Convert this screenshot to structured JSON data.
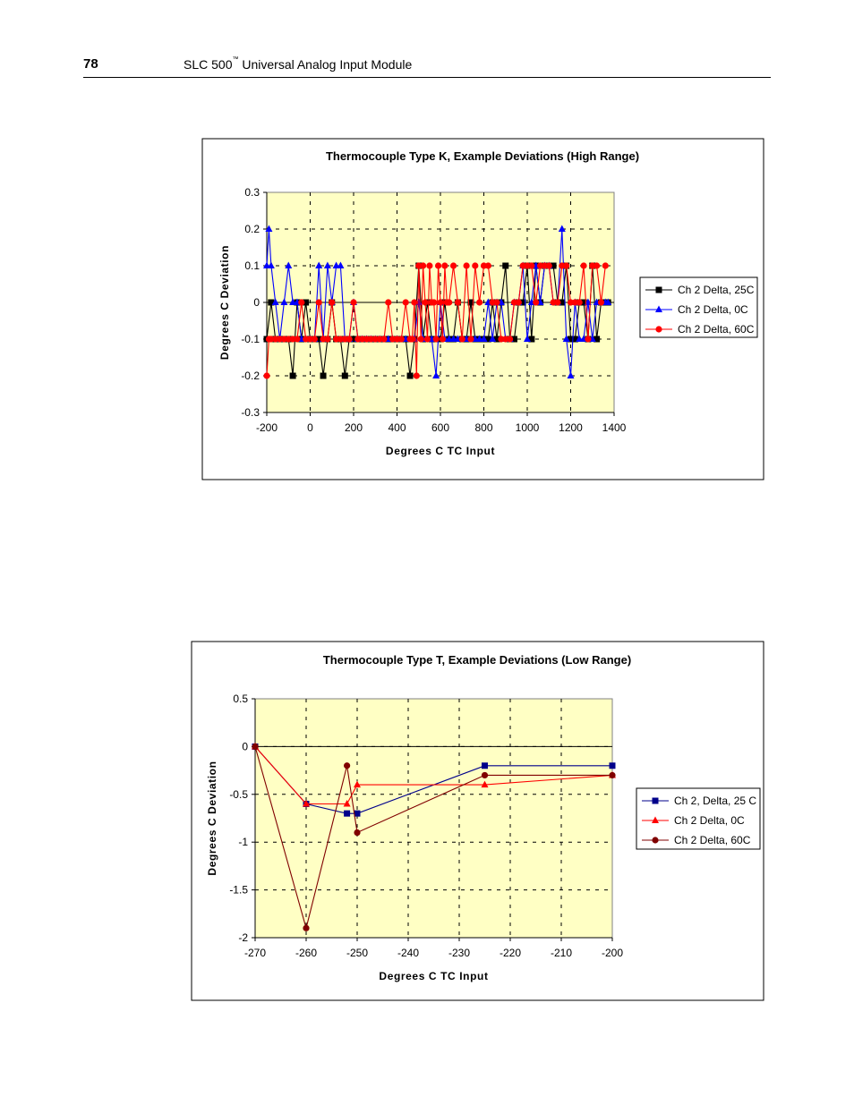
{
  "header": {
    "page_number": "78",
    "title_main": "SLC 500",
    "title_tm": "™",
    "title_rest": " Universal Analog Input Module"
  },
  "chart_data": [
    {
      "type": "line",
      "title": "Thermocouple Type K, Example Deviations (High Range)",
      "xlabel": "Degrees C TC Input",
      "ylabel": "Degrees C Deviation",
      "xlim": [
        -200,
        1400
      ],
      "ylim": [
        -0.3,
        0.3
      ],
      "xticks": [
        -200,
        0,
        200,
        400,
        600,
        800,
        1000,
        1200,
        1400
      ],
      "xtick_labels": [
        "-200",
        "0",
        "200",
        "400",
        "600",
        "800",
        "1000",
        "1200",
        "1400"
      ],
      "yticks": [
        -0.3,
        -0.2,
        -0.1,
        0,
        0.1,
        0.2,
        0.3
      ],
      "ytick_labels": [
        "-0.3",
        "-0.2",
        "-0.1",
        "0",
        "0.1",
        "0.2",
        "0.3"
      ],
      "grid": true,
      "legend_position": "right",
      "series": [
        {
          "name": "Ch 2 Delta, 25C",
          "color": "#000000",
          "marker": "square",
          "x": [
            -200,
            -180,
            -160,
            -140,
            -120,
            -100,
            -80,
            -60,
            -40,
            -20,
            0,
            20,
            40,
            60,
            80,
            100,
            120,
            140,
            160,
            180,
            200,
            220,
            240,
            260,
            280,
            300,
            320,
            340,
            360,
            380,
            400,
            420,
            440,
            460,
            480,
            500,
            520,
            540,
            560,
            580,
            600,
            620,
            640,
            660,
            680,
            700,
            720,
            740,
            760,
            780,
            800,
            820,
            840,
            860,
            880,
            900,
            920,
            940,
            960,
            980,
            1000,
            1020,
            1040,
            1060,
            1080,
            1100,
            1120,
            1140,
            1160,
            1180,
            1200,
            1220,
            1240,
            1260,
            1280,
            1300,
            1320,
            1340,
            1360,
            1372
          ],
          "y": [
            -0.1,
            0,
            -0.1,
            -0.1,
            -0.1,
            -0.1,
            -0.2,
            0,
            -0.1,
            0,
            -0.1,
            -0.1,
            -0.1,
            -0.2,
            -0.1,
            0,
            -0.1,
            -0.1,
            -0.2,
            -0.1,
            -0.1,
            -0.1,
            -0.1,
            -0.1,
            -0.1,
            -0.1,
            -0.1,
            -0.1,
            -0.1,
            -0.1,
            -0.1,
            -0.1,
            -0.1,
            -0.2,
            -0.1,
            0.1,
            -0.1,
            0,
            -0.1,
            -0.1,
            -0.1,
            0,
            -0.1,
            -0.1,
            0,
            -0.1,
            -0.1,
            0,
            -0.1,
            -0.1,
            -0.1,
            -0.1,
            0,
            -0.1,
            0,
            0.1,
            -0.1,
            -0.1,
            0,
            0,
            0.1,
            -0.1,
            0.1,
            0,
            0.1,
            0.1,
            0.1,
            0,
            0,
            0.1,
            -0.1,
            -0.1,
            0,
            0,
            -0.1,
            0.1,
            -0.1,
            0,
            0,
            0
          ]
        },
        {
          "name": "Ch 2 Delta, 0C",
          "color": "#0000ff",
          "marker": "triangle",
          "x": [
            -200,
            -190,
            -180,
            -160,
            -140,
            -120,
            -100,
            -80,
            -60,
            -40,
            -20,
            0,
            20,
            40,
            60,
            80,
            100,
            120,
            140,
            160,
            180,
            200,
            220,
            240,
            260,
            280,
            300,
            320,
            340,
            360,
            380,
            400,
            420,
            440,
            460,
            480,
            500,
            520,
            540,
            560,
            580,
            600,
            620,
            640,
            660,
            680,
            700,
            720,
            740,
            760,
            780,
            800,
            820,
            840,
            860,
            880,
            900,
            920,
            940,
            960,
            980,
            1000,
            1020,
            1040,
            1060,
            1080,
            1100,
            1120,
            1140,
            1160,
            1180,
            1200,
            1220,
            1240,
            1260,
            1280,
            1300,
            1320,
            1340,
            1360,
            1372
          ],
          "y": [
            0.1,
            0.2,
            0.1,
            0,
            -0.1,
            0,
            0.1,
            0,
            0,
            -0.1,
            -0.1,
            -0.1,
            -0.1,
            0.1,
            -0.1,
            0.1,
            0,
            0.1,
            0.1,
            -0.1,
            -0.1,
            0,
            -0.1,
            -0.1,
            -0.1,
            -0.1,
            -0.1,
            -0.1,
            -0.1,
            -0.1,
            -0.1,
            -0.1,
            -0.1,
            -0.1,
            -0.1,
            -0.1,
            0,
            -0.1,
            -0.1,
            -0.1,
            -0.2,
            0,
            -0.1,
            -0.1,
            -0.1,
            -0.1,
            -0.1,
            -0.1,
            -0.1,
            -0.1,
            -0.1,
            -0.1,
            0,
            -0.1,
            0,
            0,
            -0.1,
            -0.1,
            0,
            0,
            0.1,
            -0.1,
            0,
            0.1,
            0,
            0.1,
            0.1,
            0,
            0,
            0.2,
            -0.1,
            -0.2,
            0,
            -0.1,
            -0.1,
            0,
            -0.1,
            0,
            0,
            0,
            0
          ]
        },
        {
          "name": "Ch 2 Delta, 60C",
          "color": "#ff0000",
          "marker": "circle",
          "x": [
            -200,
            -190,
            -180,
            -160,
            -140,
            -120,
            -100,
            -80,
            -60,
            -40,
            -20,
            0,
            20,
            40,
            60,
            80,
            100,
            120,
            140,
            160,
            180,
            200,
            220,
            240,
            260,
            280,
            300,
            320,
            340,
            360,
            380,
            400,
            420,
            440,
            460,
            470,
            480,
            490,
            500,
            510,
            520,
            530,
            540,
            550,
            560,
            570,
            580,
            590,
            600,
            610,
            620,
            630,
            640,
            660,
            680,
            700,
            720,
            740,
            760,
            780,
            800,
            820,
            840,
            860,
            880,
            900,
            920,
            940,
            960,
            980,
            1000,
            1020,
            1040,
            1060,
            1080,
            1100,
            1120,
            1140,
            1160,
            1180,
            1200,
            1220,
            1240,
            1260,
            1280,
            1300,
            1320,
            1340,
            1360
          ],
          "y": [
            -0.2,
            -0.1,
            -0.1,
            -0.1,
            -0.1,
            -0.1,
            -0.1,
            -0.1,
            -0.1,
            0,
            -0.1,
            -0.1,
            -0.1,
            0,
            -0.1,
            -0.1,
            0,
            -0.1,
            -0.1,
            -0.1,
            -0.1,
            0,
            -0.1,
            -0.1,
            -0.1,
            -0.1,
            -0.1,
            -0.1,
            -0.1,
            0,
            -0.1,
            -0.1,
            -0.1,
            0,
            -0.1,
            -0.1,
            0,
            -0.2,
            0.1,
            -0.1,
            0.1,
            0,
            -0.1,
            0.1,
            0,
            0,
            -0.1,
            0.1,
            0,
            -0.1,
            0.1,
            0,
            0,
            0.1,
            0,
            -0.1,
            0.1,
            -0.1,
            0.1,
            0,
            0.1,
            0.1,
            0,
            0,
            -0.1,
            -0.1,
            -0.1,
            0,
            0,
            0.1,
            0.1,
            0.1,
            0,
            0.1,
            0.1,
            0.1,
            0,
            0,
            0.1,
            0.1,
            0,
            0,
            0,
            0.1,
            -0.1,
            0.1,
            0.1,
            0,
            0.1
          ]
        }
      ]
    },
    {
      "type": "line",
      "title": "Thermocouple Type T, Example Deviations (Low Range)",
      "xlabel": "Degrees C TC Input",
      "ylabel": "Degrees C Deviation",
      "xlim": [
        -270,
        -200
      ],
      "ylim": [
        -2,
        0.5
      ],
      "xticks": [
        -270,
        -260,
        -250,
        -240,
        -230,
        -220,
        -210,
        -200
      ],
      "xtick_labels": [
        "-270",
        "-260",
        "-250",
        "-240",
        "-230",
        "-220",
        "-210",
        "-200"
      ],
      "yticks": [
        -2,
        -1.5,
        -1,
        -0.5,
        0,
        0.5
      ],
      "ytick_labels": [
        "-2",
        "-1.5",
        "-1",
        "-0.5",
        "0",
        "0.5"
      ],
      "grid": true,
      "legend_position": "right",
      "series": [
        {
          "name": "Ch 2, Delta, 25 C",
          "color": "#00008b",
          "marker": "square",
          "x": [
            -270,
            -260,
            -252,
            -250,
            -225,
            -200
          ],
          "y": [
            0,
            -0.6,
            -0.7,
            -0.7,
            -0.2,
            -0.2
          ]
        },
        {
          "name": "Ch 2 Delta, 0C",
          "color": "#ff0000",
          "marker": "triangle",
          "x": [
            -270,
            -260,
            -252,
            -250,
            -225,
            -200
          ],
          "y": [
            0,
            -0.6,
            -0.6,
            -0.4,
            -0.4,
            -0.3
          ]
        },
        {
          "name": "Ch 2 Delta, 60C",
          "color": "#800000",
          "marker": "circle",
          "x": [
            -270,
            -260,
            -252,
            -250,
            -225,
            -200
          ],
          "y": [
            0,
            -1.9,
            -0.2,
            -0.9,
            -0.3,
            -0.3
          ]
        }
      ]
    }
  ]
}
